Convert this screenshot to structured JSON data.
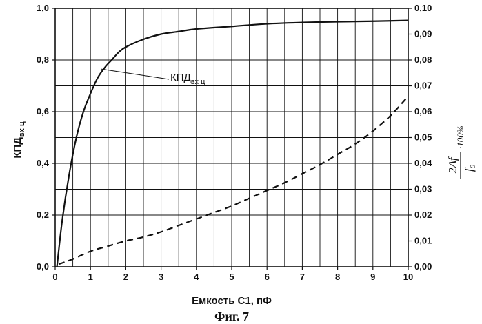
{
  "chart_data": {
    "type": "line",
    "caption": "Фиг. 7",
    "xlabel": "Емкость C1, пФ",
    "ylabel_left": {
      "main": "КПД",
      "sub": "вх ц"
    },
    "ylabel_right": {
      "numerator": "2Δf",
      "denominator": "f",
      "denominator_sub": "0",
      "suffix": "·100%"
    },
    "xlim": [
      0,
      10
    ],
    "ylim_left": [
      0,
      1.0
    ],
    "ylim_right": [
      0,
      0.1
    ],
    "x_ticks": [
      "0",
      "1",
      "2",
      "3",
      "4",
      "5",
      "6",
      "7",
      "8",
      "9",
      "10"
    ],
    "y_left_ticks": [
      "0,0",
      "0,2",
      "0,4",
      "0,6",
      "0,8",
      "1,0"
    ],
    "y_right_ticks": [
      "0,00",
      "0,01",
      "0,02",
      "0,03",
      "0,04",
      "0,05",
      "0,06",
      "0,07",
      "0,08",
      "0,09",
      "0,10"
    ],
    "grid": true,
    "annotation": {
      "main": "КПД",
      "sub": "вх ц",
      "target": [
        1.3,
        0.765
      ]
    },
    "series": [
      {
        "axis": "left",
        "style": "solid",
        "x": [
          0.05,
          0.2,
          0.4,
          0.6,
          0.8,
          1.0,
          1.2,
          1.4,
          1.6,
          1.8,
          2.0,
          2.5,
          3.0,
          3.5,
          4.0,
          5.0,
          6.0,
          7.0,
          8.0,
          9.0,
          10.0
        ],
        "y": [
          0.0,
          0.18,
          0.36,
          0.5,
          0.6,
          0.67,
          0.73,
          0.77,
          0.8,
          0.83,
          0.85,
          0.88,
          0.9,
          0.91,
          0.92,
          0.93,
          0.94,
          0.945,
          0.948,
          0.95,
          0.953
        ]
      },
      {
        "axis": "right",
        "style": "dashed",
        "x": [
          0.1,
          0.5,
          1.0,
          1.5,
          2.0,
          2.5,
          3.0,
          3.5,
          4.0,
          4.5,
          5.0,
          5.5,
          6.0,
          6.5,
          7.0,
          7.5,
          8.0,
          8.5,
          9.0,
          9.5,
          10.0
        ],
        "y": [
          0.001,
          0.003,
          0.006,
          0.008,
          0.01,
          0.0115,
          0.0135,
          0.016,
          0.0185,
          0.021,
          0.0235,
          0.0265,
          0.0295,
          0.0325,
          0.036,
          0.0395,
          0.0435,
          0.0475,
          0.0525,
          0.0585,
          0.066
        ]
      }
    ]
  }
}
